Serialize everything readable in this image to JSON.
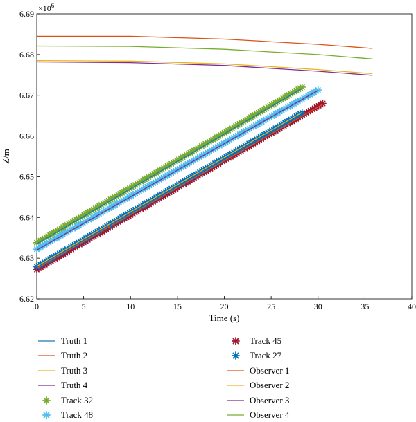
{
  "chart_data": {
    "type": "line",
    "xlabel": "Time (s)",
    "ylabel": "Z/m",
    "y_exponent_label": "×10",
    "y_exponent_power": "6",
    "xlim": [
      0,
      40
    ],
    "ylim": [
      6.62,
      6.69
    ],
    "xticks": [
      "0",
      "5",
      "10",
      "15",
      "20",
      "25",
      "30",
      "35",
      "40"
    ],
    "yticks": [
      "6.62",
      "6.63",
      "6.64",
      "6.65",
      "6.66",
      "6.67",
      "6.68",
      "6.69"
    ],
    "xtick_values": [
      0,
      5,
      10,
      15,
      20,
      25,
      30,
      35,
      40
    ],
    "ytick_values": [
      6.62,
      6.63,
      6.64,
      6.65,
      6.66,
      6.67,
      6.68,
      6.69
    ],
    "grid": false,
    "legend_position": "bottom",
    "series": [
      {
        "name": "Truth 1",
        "kind": "line",
        "color": "#1f77b4",
        "x": [
          0,
          28.3
        ],
        "y": [
          6.6335,
          6.6717
        ]
      },
      {
        "name": "Truth 2",
        "kind": "line",
        "color": "#d95319",
        "x": [
          0,
          30.5
        ],
        "y": [
          6.6275,
          6.6678
        ]
      },
      {
        "name": "Truth 3",
        "kind": "line",
        "color": "#edb120",
        "x": [
          0,
          28.3
        ],
        "y": [
          6.628,
          6.6658
        ]
      },
      {
        "name": "Truth 4",
        "kind": "line",
        "color": "#7e2f8e",
        "x": [
          0,
          30.0
        ],
        "y": [
          6.632,
          6.6712
        ]
      },
      {
        "name": "Track 32",
        "kind": "marker",
        "marker": "asterisk",
        "color": "#77ac30",
        "x": [
          0,
          28.3
        ],
        "y": [
          6.6338,
          6.672
        ]
      },
      {
        "name": "Track 48",
        "kind": "marker",
        "marker": "asterisk",
        "color": "#4dbeee",
        "x": [
          0,
          30.0
        ],
        "y": [
          6.6322,
          6.6713
        ]
      },
      {
        "name": "Track 45",
        "kind": "marker",
        "marker": "asterisk",
        "color": "#a2142f",
        "x": [
          0,
          30.5
        ],
        "y": [
          6.6272,
          6.668
        ]
      },
      {
        "name": "Track 27",
        "kind": "marker",
        "marker": "asterisk",
        "color": "#0072bd",
        "x": [
          0,
          28.3
        ],
        "y": [
          6.6279,
          6.6657
        ]
      },
      {
        "name": "Observer 1",
        "kind": "line",
        "color": "#d95319",
        "x": [
          0,
          10,
          20,
          30,
          35.8
        ],
        "y": [
          6.6845,
          6.6845,
          6.6838,
          6.6825,
          6.6815
        ]
      },
      {
        "name": "Observer 2",
        "kind": "line",
        "color": "#edb120",
        "x": [
          0,
          10,
          20,
          30,
          35.8
        ],
        "y": [
          6.6785,
          6.6784,
          6.6777,
          6.6763,
          6.6753
        ]
      },
      {
        "name": "Observer 3",
        "kind": "line",
        "color": "#7e2f8e",
        "x": [
          0,
          10,
          20,
          30,
          35.8
        ],
        "y": [
          6.6782,
          6.678,
          6.6773,
          6.6759,
          6.6749
        ]
      },
      {
        "name": "Observer 4",
        "kind": "line",
        "color": "#77ac30",
        "x": [
          0,
          10,
          20,
          30,
          35.8
        ],
        "y": [
          6.6821,
          6.682,
          6.6813,
          6.68,
          6.6789
        ]
      }
    ],
    "legend": {
      "left_column": [
        "Truth 1",
        "Truth 2",
        "Truth 3",
        "Truth 4",
        "Track 32",
        "Track 48"
      ],
      "right_column": [
        "Track 45",
        "Track 27",
        "Observer 1",
        "Observer 2",
        "Observer 3",
        "Observer 4"
      ]
    }
  }
}
